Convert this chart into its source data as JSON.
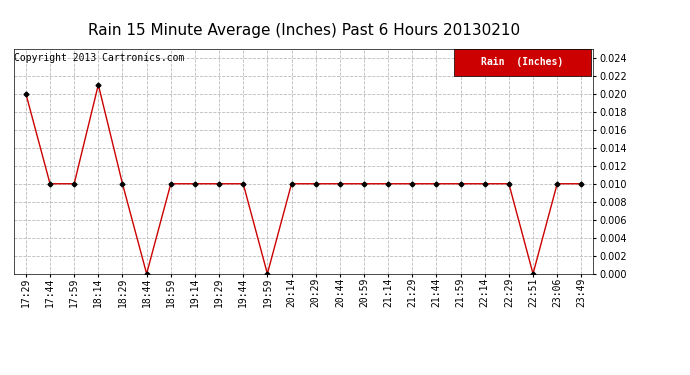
{
  "title": "Rain 15 Minute Average (Inches) Past 6 Hours 20130210",
  "copyright": "Copyright 2013 Cartronics.com",
  "legend_label": "Rain  (Inches)",
  "x_labels": [
    "17:29",
    "17:44",
    "17:59",
    "18:14",
    "18:29",
    "18:44",
    "18:59",
    "19:14",
    "19:29",
    "19:44",
    "19:59",
    "20:14",
    "20:29",
    "20:44",
    "20:59",
    "21:14",
    "21:29",
    "21:44",
    "21:59",
    "22:14",
    "22:29",
    "22:51",
    "23:06",
    "23:49"
  ],
  "y_values": [
    0.02,
    0.01,
    0.01,
    0.021,
    0.01,
    0.0,
    0.01,
    0.01,
    0.01,
    0.01,
    0.0,
    0.01,
    0.01,
    0.01,
    0.01,
    0.01,
    0.01,
    0.01,
    0.01,
    0.01,
    0.01,
    0.0,
    0.01,
    0.01
  ],
  "ylim": [
    0.0,
    0.025
  ],
  "yticks": [
    0.0,
    0.002,
    0.004,
    0.006,
    0.008,
    0.01,
    0.012,
    0.014,
    0.016,
    0.018,
    0.02,
    0.022,
    0.024
  ],
  "line_color": "#cc0000",
  "marker_color": "#000000",
  "bg_color": "#ffffff",
  "grid_color": "#bbbbbb",
  "title_fontsize": 11,
  "label_fontsize": 7,
  "copyright_fontsize": 7,
  "legend_bg": "#cc0000",
  "legend_text_color": "#ffffff",
  "legend_fontsize": 7
}
